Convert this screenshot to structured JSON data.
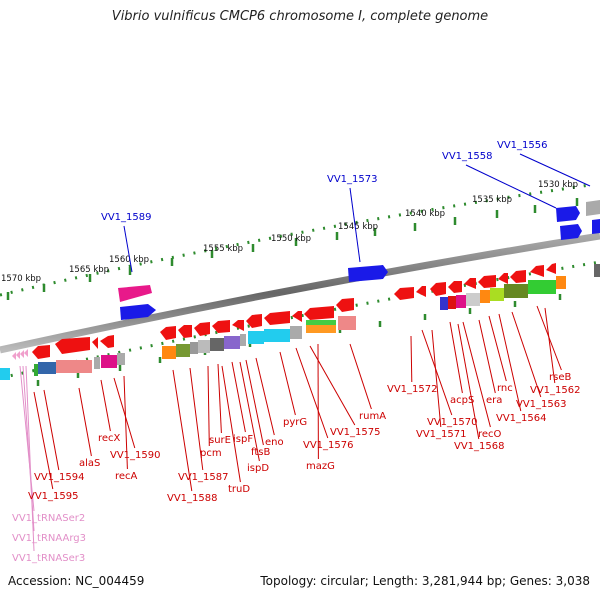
{
  "title": "Vibrio vulnificus CMCP6 chromosome I, complete genome",
  "footer": {
    "accession": "Accession: NC_004459",
    "summary": "Topology: circular; Length: 3,281,944 bp; Genes: 3,038"
  },
  "colors": {
    "label_red": "#cc0000",
    "label_blue": "#0000cc",
    "label_pink": "#e28fc8",
    "ruler": "#2e8b2e",
    "backbone": "#888888"
  },
  "ruler_labels": [
    "1570 kbp",
    "1565 kbp",
    "1560 kbp",
    "1555 kbp",
    "1550 kbp",
    "1545 kbp",
    "1540 kbp",
    "1535 kbp",
    "1530 kbp"
  ],
  "outer_labels": [
    "VV1_1589",
    "VV1_1573",
    "VV1_1558",
    "VV1_1556"
  ],
  "inner_labels": [
    "alaS",
    "recX",
    "VV1_1594",
    "VV1_1590",
    "recA",
    "VV1_1595",
    "VV1_1587",
    "VV1_1588",
    "pcm",
    "surE",
    "ispF",
    "truD",
    "ispD",
    "ftsB",
    "eno",
    "pyrG",
    "VV1_1576",
    "VV1_1575",
    "mazG",
    "rumA",
    "VV1_1572",
    "VV1_1570",
    "VV1_1571",
    "acpS",
    "recO",
    "VV1_1568",
    "era",
    "rnc",
    "VV1_1564",
    "VV1_1563",
    "rseB",
    "VV1_1562"
  ],
  "trna_labels": [
    "VV1_tRNASer2",
    "VV1_tRNAArg3",
    "VV1_tRNASer3"
  ]
}
